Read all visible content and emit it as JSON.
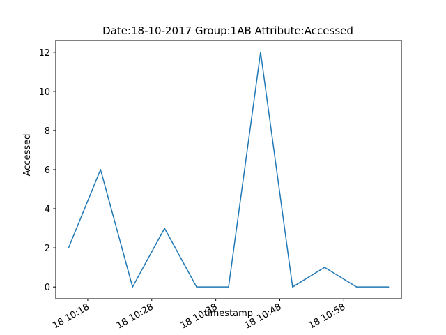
{
  "chart_data": {
    "type": "line",
    "title": "Date:18-10-2017  Group:1AB Attribute:Accessed",
    "xlabel": "timestamp",
    "ylabel": "Accessed",
    "x_tick_labels": [
      "18 10:18",
      "18 10:28",
      "18 10:38",
      "18 10:48",
      "18 10:58"
    ],
    "x_ticks": [
      "2017-10-18 10:18",
      "2017-10-18 10:28",
      "2017-10-18 10:38",
      "2017-10-18 10:48",
      "2017-10-18 10:58"
    ],
    "y_ticks": [
      0,
      2,
      4,
      6,
      8,
      10,
      12
    ],
    "xlim": [
      "2017-10-18 10:13",
      "2017-10-18 11:07"
    ],
    "ylim": [
      -0.6,
      12.6
    ],
    "grid": false,
    "series": [
      {
        "color": "#1f77b4",
        "x": [
          "2017-10-18 10:15",
          "2017-10-18 10:20",
          "2017-10-18 10:25",
          "2017-10-18 10:30",
          "2017-10-18 10:35",
          "2017-10-18 10:40",
          "2017-10-18 10:45",
          "2017-10-18 10:50",
          "2017-10-18 10:55",
          "2017-10-18 11:00",
          "2017-10-18 11:05"
        ],
        "values": [
          2,
          6,
          0,
          3,
          0,
          0,
          12,
          0,
          1,
          0,
          0
        ]
      }
    ]
  }
}
